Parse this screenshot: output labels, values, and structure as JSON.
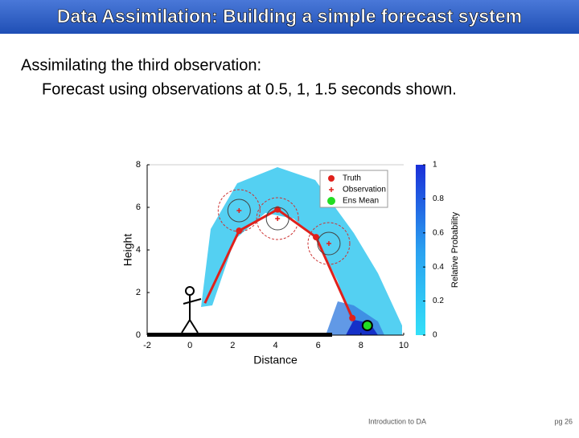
{
  "header": {
    "title": "Data Assimilation: Building a simple forecast system"
  },
  "body": {
    "line1": "Assimilating the third observation:",
    "line2": "Forecast using observations at 0.5, 1, 1.5 seconds shown."
  },
  "chart_data": {
    "type": "scatter",
    "xlabel": "Distance",
    "ylabel": "Height",
    "xlim": [
      -2,
      10
    ],
    "ylim": [
      0,
      8
    ],
    "xticks": [
      -2,
      0,
      2,
      4,
      6,
      8,
      10
    ],
    "yticks": [
      0,
      2,
      4,
      6,
      8
    ],
    "series": [
      {
        "name": "Truth",
        "color": "#e0201b",
        "x": [
          0.7,
          2.3,
          4.1,
          5.9,
          7.6
        ],
        "values": [
          1.5,
          4.9,
          5.9,
          4.6,
          0.8
        ]
      },
      {
        "name": "Observation",
        "color": "#e0201b",
        "x": [
          2.3,
          4.1,
          6.5
        ],
        "values": [
          5.85,
          5.47,
          4.3
        ]
      },
      {
        "name": "Ens Mean",
        "color": "#22dd22",
        "x": [
          8.3
        ],
        "values": [
          0.45
        ]
      }
    ],
    "colorbar": {
      "label": "Relative Probability",
      "lim": [
        0,
        1
      ],
      "ticks": [
        0,
        0.2,
        0.4,
        0.6,
        0.8,
        1
      ]
    }
  },
  "footer": {
    "left": "Introduction to DA",
    "right": "pg 26"
  }
}
